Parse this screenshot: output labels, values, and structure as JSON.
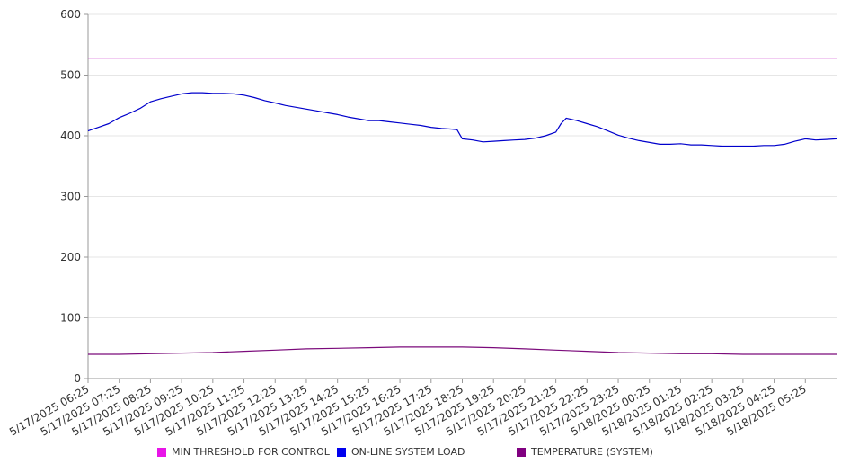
{
  "chart_data": {
    "type": "line",
    "ylim": [
      0,
      600
    ],
    "y_ticks": [
      0,
      100,
      200,
      300,
      400,
      500,
      600
    ],
    "x_tick_labels": [
      "5/17/2025 06:25",
      "5/17/2025 07:25",
      "5/17/2025 08:25",
      "5/17/2025 09:25",
      "5/17/2025 10:25",
      "5/17/2025 11:25",
      "5/17/2025 12:25",
      "5/17/2025 13:25",
      "5/17/2025 14:25",
      "5/17/2025 15:25",
      "5/17/2025 16:25",
      "5/17/2025 17:25",
      "5/17/2025 18:25",
      "5/17/2025 19:25",
      "5/17/2025 20:25",
      "5/17/2025 21:25",
      "5/17/2025 22:25",
      "5/17/2025 23:25",
      "5/18/2025 00:25",
      "5/18/2025 01:25",
      "5/18/2025 02:25",
      "5/18/2025 03:25",
      "5/18/2025 04:25",
      "5/18/2025 05:25"
    ],
    "x_start": "5/17/2025 06:25",
    "x_end": "5/18/2025 06:25",
    "grid": "horizontal",
    "legend_position": "bottom",
    "series": [
      {
        "name": "MIN THRESHOLD FOR CONTROL",
        "color": "#cc33cc",
        "legend_color": "#e815e8",
        "points": [
          [
            "5/17/2025 06:25",
            528
          ],
          [
            "5/18/2025 06:25",
            528
          ]
        ]
      },
      {
        "name": "ON-LINE SYSTEM LOAD",
        "color": "#0000cc",
        "legend_color": "#0000ee",
        "points": [
          [
            "5/17/2025 06:25",
            408
          ],
          [
            "5/17/2025 06:45",
            414
          ],
          [
            "5/17/2025 07:05",
            420
          ],
          [
            "5/17/2025 07:25",
            430
          ],
          [
            "5/17/2025 07:45",
            437
          ],
          [
            "5/17/2025 08:05",
            445
          ],
          [
            "5/17/2025 08:25",
            456
          ],
          [
            "5/17/2025 08:45",
            461
          ],
          [
            "5/17/2025 09:05",
            465
          ],
          [
            "5/17/2025 09:25",
            469
          ],
          [
            "5/17/2025 09:45",
            471
          ],
          [
            "5/17/2025 10:05",
            471
          ],
          [
            "5/17/2025 10:25",
            470
          ],
          [
            "5/17/2025 10:45",
            470
          ],
          [
            "5/17/2025 11:05",
            469
          ],
          [
            "5/17/2025 11:25",
            467
          ],
          [
            "5/17/2025 11:45",
            463
          ],
          [
            "5/17/2025 12:05",
            458
          ],
          [
            "5/17/2025 12:25",
            454
          ],
          [
            "5/17/2025 12:45",
            450
          ],
          [
            "5/17/2025 13:05",
            447
          ],
          [
            "5/17/2025 13:25",
            444
          ],
          [
            "5/17/2025 13:45",
            441
          ],
          [
            "5/17/2025 14:05",
            438
          ],
          [
            "5/17/2025 14:25",
            435
          ],
          [
            "5/17/2025 14:45",
            431
          ],
          [
            "5/17/2025 15:05",
            428
          ],
          [
            "5/17/2025 15:25",
            425
          ],
          [
            "5/17/2025 15:45",
            425
          ],
          [
            "5/17/2025 16:05",
            423
          ],
          [
            "5/17/2025 16:25",
            421
          ],
          [
            "5/17/2025 16:45",
            419
          ],
          [
            "5/17/2025 17:05",
            417
          ],
          [
            "5/17/2025 17:25",
            414
          ],
          [
            "5/17/2025 17:45",
            412
          ],
          [
            "5/17/2025 18:05",
            411
          ],
          [
            "5/17/2025 18:15",
            410
          ],
          [
            "5/17/2025 18:25",
            395
          ],
          [
            "5/17/2025 18:45",
            393
          ],
          [
            "5/17/2025 19:05",
            390
          ],
          [
            "5/17/2025 19:25",
            391
          ],
          [
            "5/17/2025 19:45",
            392
          ],
          [
            "5/17/2025 20:05",
            393
          ],
          [
            "5/17/2025 20:25",
            394
          ],
          [
            "5/17/2025 20:45",
            396
          ],
          [
            "5/17/2025 21:05",
            400
          ],
          [
            "5/17/2025 21:25",
            406
          ],
          [
            "5/17/2025 21:35",
            420
          ],
          [
            "5/17/2025 21:45",
            429
          ],
          [
            "5/17/2025 22:05",
            425
          ],
          [
            "5/17/2025 22:25",
            420
          ],
          [
            "5/17/2025 22:45",
            415
          ],
          [
            "5/17/2025 23:05",
            408
          ],
          [
            "5/17/2025 23:25",
            401
          ],
          [
            "5/17/2025 23:45",
            396
          ],
          [
            "5/18/2025 00:05",
            392
          ],
          [
            "5/18/2025 00:25",
            389
          ],
          [
            "5/18/2025 00:45",
            386
          ],
          [
            "5/18/2025 01:05",
            386
          ],
          [
            "5/18/2025 01:25",
            387
          ],
          [
            "5/18/2025 01:45",
            385
          ],
          [
            "5/18/2025 02:05",
            385
          ],
          [
            "5/18/2025 02:25",
            384
          ],
          [
            "5/18/2025 02:45",
            383
          ],
          [
            "5/18/2025 03:05",
            383
          ],
          [
            "5/18/2025 03:25",
            383
          ],
          [
            "5/18/2025 03:45",
            383
          ],
          [
            "5/18/2025 04:05",
            384
          ],
          [
            "5/18/2025 04:25",
            384
          ],
          [
            "5/18/2025 04:45",
            386
          ],
          [
            "5/18/2025 05:05",
            391
          ],
          [
            "5/18/2025 05:25",
            395
          ],
          [
            "5/18/2025 05:45",
            393
          ],
          [
            "5/18/2025 06:05",
            394
          ],
          [
            "5/18/2025 06:25",
            395
          ]
        ]
      },
      {
        "name": "TEMPERATURE (SYSTEM)",
        "color": "#7b0a7b",
        "legend_color": "#800080",
        "points": [
          [
            "5/17/2025 06:25",
            40
          ],
          [
            "5/17/2025 07:25",
            40
          ],
          [
            "5/17/2025 08:25",
            41
          ],
          [
            "5/17/2025 09:25",
            42
          ],
          [
            "5/17/2025 10:25",
            43
          ],
          [
            "5/17/2025 11:25",
            45
          ],
          [
            "5/17/2025 12:25",
            47
          ],
          [
            "5/17/2025 13:25",
            49
          ],
          [
            "5/17/2025 14:25",
            50
          ],
          [
            "5/17/2025 15:25",
            51
          ],
          [
            "5/17/2025 16:25",
            52
          ],
          [
            "5/17/2025 17:25",
            52
          ],
          [
            "5/17/2025 18:25",
            52
          ],
          [
            "5/17/2025 19:25",
            51
          ],
          [
            "5/17/2025 20:25",
            49
          ],
          [
            "5/17/2025 21:25",
            47
          ],
          [
            "5/17/2025 22:25",
            45
          ],
          [
            "5/17/2025 23:25",
            43
          ],
          [
            "5/18/2025 00:25",
            42
          ],
          [
            "5/18/2025 01:25",
            41
          ],
          [
            "5/18/2025 02:25",
            41
          ],
          [
            "5/18/2025 03:25",
            40
          ],
          [
            "5/18/2025 04:25",
            40
          ],
          [
            "5/18/2025 05:25",
            40
          ],
          [
            "5/18/2025 06:25",
            40
          ]
        ]
      }
    ]
  }
}
